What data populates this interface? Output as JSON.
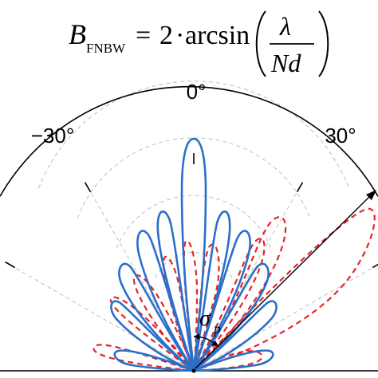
{
  "formula": {
    "symbol": "B",
    "subscript": "FNBW",
    "equals": "=",
    "coefficient": "2",
    "dot": "·",
    "function": "arcsin",
    "numerator": "λ",
    "denominator": "Nd"
  },
  "polar_plot": {
    "angle_labels": [
      "−30°",
      "0°",
      "30°"
    ],
    "annotation_symbol": "σ",
    "annotation_subscript": "p",
    "colors": {
      "solid_pattern": "#2a6fc9",
      "dashed_pattern": "#e3262b",
      "grid": "#bdbdbd",
      "frame": "#000000"
    }
  }
}
